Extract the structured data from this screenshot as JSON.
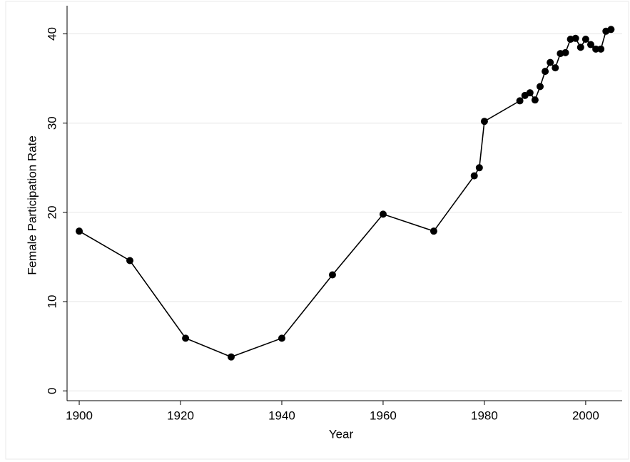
{
  "chart_data": {
    "type": "line",
    "x_label": "Year",
    "y_label": "Female Participation Rate",
    "x": [
      1900,
      1910,
      1921,
      1930,
      1940,
      1950,
      1960,
      1970,
      1978,
      1979,
      1980,
      1987,
      1988,
      1989,
      1990,
      1991,
      1992,
      1993,
      1994,
      1995,
      1996,
      1997,
      1998,
      1999,
      2000,
      2001,
      2002,
      2003,
      2004,
      2005
    ],
    "series": [
      {
        "color": "#000000",
        "values": [
          17.9,
          14.6,
          5.9,
          3.8,
          5.9,
          13.0,
          19.8,
          17.9,
          24.1,
          25.0,
          30.2,
          32.5,
          33.1,
          33.4,
          32.6,
          34.1,
          35.8,
          36.8,
          36.2,
          37.8,
          37.9,
          39.4,
          39.5,
          38.5,
          39.4,
          38.8,
          38.3,
          38.3,
          40.3,
          40.5
        ]
      }
    ],
    "xlim": [
      1897.6,
      2007.2
    ],
    "xticks": [
      1900,
      1920,
      1940,
      1960,
      1980,
      2000
    ],
    "ylim": [
      -1.1,
      42.2
    ],
    "yticks": [
      0,
      10,
      20,
      30,
      40
    ],
    "grid": true
  }
}
